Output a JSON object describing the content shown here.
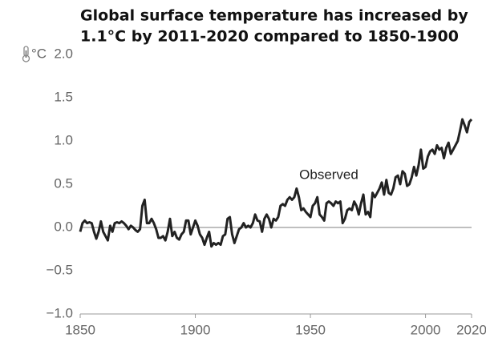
{
  "chart_data": {
    "type": "line",
    "title": [
      "Global surface temperature has increased by",
      "1.1°C by 2011-2020 compared to 1850-1900"
    ],
    "y_label": "°C",
    "annotation": "Observed",
    "x": [
      1850,
      1851,
      1852,
      1853,
      1854,
      1855,
      1856,
      1857,
      1858,
      1859,
      1860,
      1861,
      1862,
      1863,
      1864,
      1865,
      1866,
      1867,
      1868,
      1869,
      1870,
      1871,
      1872,
      1873,
      1874,
      1875,
      1876,
      1877,
      1878,
      1879,
      1880,
      1881,
      1882,
      1883,
      1884,
      1885,
      1886,
      1887,
      1888,
      1889,
      1890,
      1891,
      1892,
      1893,
      1894,
      1895,
      1896,
      1897,
      1898,
      1899,
      1900,
      1901,
      1902,
      1903,
      1904,
      1905,
      1906,
      1907,
      1908,
      1909,
      1910,
      1911,
      1912,
      1913,
      1914,
      1915,
      1916,
      1917,
      1918,
      1919,
      1920,
      1921,
      1922,
      1923,
      1924,
      1925,
      1926,
      1927,
      1928,
      1929,
      1930,
      1931,
      1932,
      1933,
      1934,
      1935,
      1936,
      1937,
      1938,
      1939,
      1940,
      1941,
      1942,
      1943,
      1944,
      1945,
      1946,
      1947,
      1948,
      1949,
      1950,
      1951,
      1952,
      1953,
      1954,
      1955,
      1956,
      1957,
      1958,
      1959,
      1960,
      1961,
      1962,
      1963,
      1964,
      1965,
      1966,
      1967,
      1968,
      1969,
      1970,
      1971,
      1972,
      1973,
      1974,
      1975,
      1976,
      1977,
      1978,
      1979,
      1980,
      1981,
      1982,
      1983,
      1984,
      1985,
      1986,
      1987,
      1988,
      1989,
      1990,
      1991,
      1992,
      1993,
      1994,
      1995,
      1996,
      1997,
      1998,
      1999,
      2000,
      2001,
      2002,
      2003,
      2004,
      2005,
      2006,
      2007,
      2008,
      2009,
      2010,
      2011,
      2012,
      2013,
      2014,
      2015,
      2016,
      2017,
      2018,
      2019,
      2020
    ],
    "series": [
      {
        "color": "#222222",
        "values": [
          -0.05,
          0.05,
          0.08,
          0.05,
          0.06,
          0.05,
          -0.05,
          -0.13,
          -0.05,
          0.07,
          -0.05,
          -0.1,
          -0.15,
          0.02,
          -0.05,
          0.05,
          0.06,
          0.05,
          0.07,
          0.05,
          0.02,
          -0.02,
          0.02,
          0.0,
          -0.03,
          -0.05,
          -0.02,
          0.25,
          0.32,
          0.05,
          0.05,
          0.1,
          0.05,
          -0.02,
          -0.12,
          -0.12,
          -0.1,
          -0.15,
          -0.05,
          0.1,
          -0.1,
          -0.05,
          -0.12,
          -0.14,
          -0.08,
          -0.05,
          0.08,
          0.08,
          -0.08,
          0.0,
          0.08,
          0.02,
          -0.08,
          -0.12,
          -0.2,
          -0.12,
          -0.05,
          -0.22,
          -0.18,
          -0.2,
          -0.18,
          -0.2,
          -0.1,
          -0.08,
          0.1,
          0.12,
          -0.08,
          -0.18,
          -0.1,
          -0.02,
          0.0,
          0.05,
          0.0,
          0.02,
          0.0,
          0.05,
          0.15,
          0.08,
          0.07,
          -0.05,
          0.1,
          0.15,
          0.1,
          0.0,
          0.1,
          0.08,
          0.12,
          0.25,
          0.27,
          0.25,
          0.32,
          0.35,
          0.32,
          0.35,
          0.45,
          0.35,
          0.2,
          0.22,
          0.18,
          0.15,
          0.12,
          0.25,
          0.28,
          0.35,
          0.15,
          0.12,
          0.08,
          0.28,
          0.3,
          0.28,
          0.25,
          0.3,
          0.28,
          0.3,
          0.05,
          0.1,
          0.2,
          0.22,
          0.2,
          0.3,
          0.25,
          0.15,
          0.28,
          0.38,
          0.15,
          0.18,
          0.12,
          0.4,
          0.35,
          0.4,
          0.45,
          0.52,
          0.38,
          0.55,
          0.4,
          0.38,
          0.45,
          0.58,
          0.6,
          0.5,
          0.65,
          0.62,
          0.48,
          0.5,
          0.58,
          0.7,
          0.6,
          0.72,
          0.9,
          0.68,
          0.7,
          0.82,
          0.88,
          0.9,
          0.85,
          0.95,
          0.9,
          0.92,
          0.8,
          0.92,
          0.98,
          0.85,
          0.9,
          0.95,
          1.0,
          1.12,
          1.25,
          1.18,
          1.1,
          1.22,
          1.25
        ]
      }
    ],
    "xlim": [
      1850,
      2020
    ],
    "xticks": [
      1850,
      1900,
      1950,
      2000,
      2020
    ],
    "ylim": [
      -1,
      2
    ],
    "yticks": [
      {
        "value": 2,
        "label": "2.0"
      },
      1.5,
      {
        "value": 1,
        "label": "1.0"
      },
      0.5,
      {
        "value": 0,
        "label": "0.0"
      },
      {
        "value": -0.5,
        "label": "−0.5"
      },
      {
        "value": -1,
        "label": "−1.0"
      }
    ],
    "zero_line": true,
    "grid": false
  }
}
